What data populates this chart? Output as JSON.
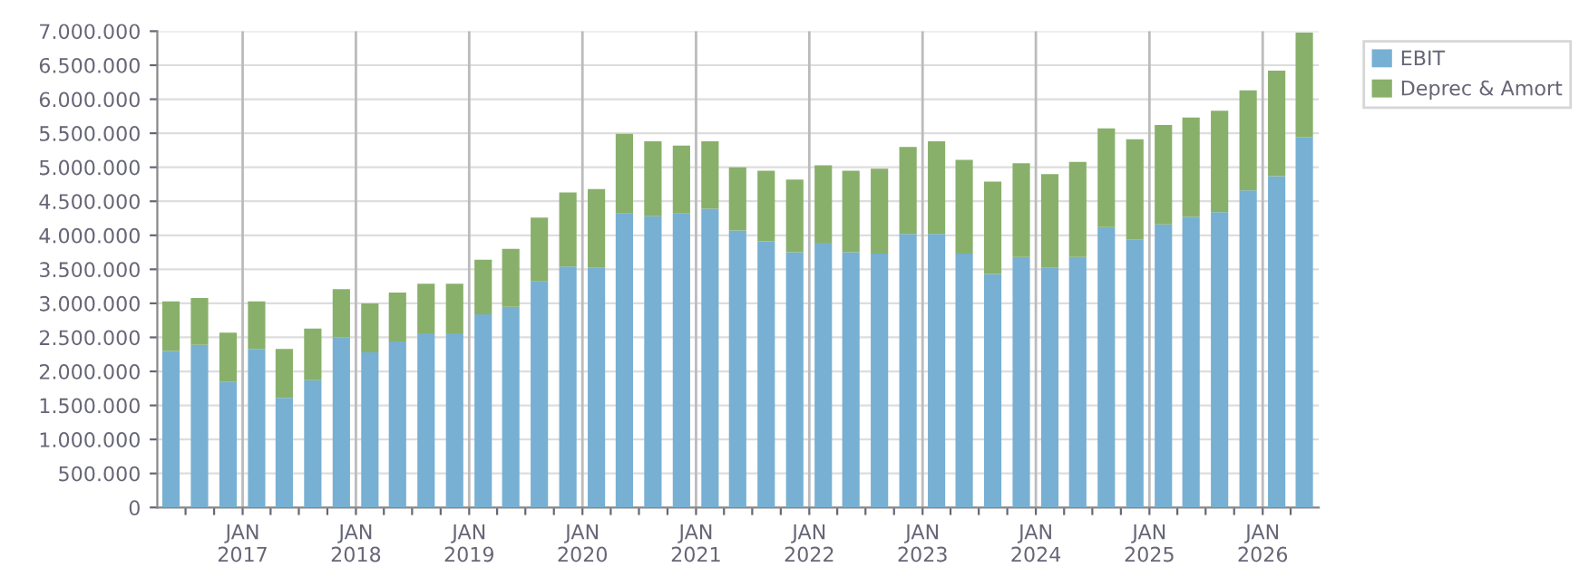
{
  "chart_data": {
    "type": "bar",
    "stacked": true,
    "x": [
      "2016-05-15",
      "2016-08-15",
      "2016-11-15",
      "2017-02-15",
      "2017-05-15",
      "2017-08-15",
      "2017-11-15",
      "2018-02-15",
      "2018-05-15",
      "2018-08-15",
      "2018-11-15",
      "2019-02-15",
      "2019-05-15",
      "2019-08-15",
      "2019-11-15",
      "2020-02-15",
      "2020-05-15",
      "2020-08-15",
      "2020-11-15",
      "2021-02-15",
      "2021-05-15",
      "2021-08-15",
      "2021-11-15",
      "2022-02-15",
      "2022-05-15",
      "2022-08-15",
      "2022-11-15",
      "2023-02-15",
      "2023-05-15",
      "2023-08-15",
      "2023-11-15",
      "2024-02-15",
      "2024-05-15",
      "2024-08-15",
      "2024-11-15",
      "2025-02-15",
      "2025-05-15",
      "2025-08-15",
      "2025-11-15",
      "2026-02-15",
      "2026-05-15"
    ],
    "series": [
      {
        "name": "EBIT",
        "color": "#77b0d3",
        "values": [
          2300000,
          2390000,
          1850000,
          2330000,
          1610000,
          1870000,
          2500000,
          2280000,
          2440000,
          2560000,
          2560000,
          2840000,
          2950000,
          3320000,
          3540000,
          3520000,
          4320000,
          4280000,
          4320000,
          4390000,
          4070000,
          3910000,
          3750000,
          3890000,
          3750000,
          3730000,
          4020000,
          4020000,
          3730000,
          3430000,
          3680000,
          3520000,
          3680000,
          4120000,
          3940000,
          4160000,
          4270000,
          4340000,
          4660000,
          4870000,
          5440000
        ]
      },
      {
        "name": "Deprec & Amort",
        "color": "#88b06a",
        "values": [
          730000,
          690000,
          720000,
          700000,
          720000,
          760000,
          710000,
          720000,
          720000,
          730000,
          730000,
          800000,
          850000,
          940000,
          1090000,
          1160000,
          1170000,
          1100000,
          1000000,
          990000,
          930000,
          1040000,
          1070000,
          1140000,
          1200000,
          1250000,
          1280000,
          1360000,
          1380000,
          1360000,
          1380000,
          1380000,
          1400000,
          1450000,
          1470000,
          1460000,
          1460000,
          1490000,
          1470000,
          1550000,
          1540000
        ]
      }
    ],
    "xlim": [
      "2016-04-01",
      "2026-07-01"
    ],
    "xticks": [
      {
        "value": "2016-07-01",
        "label": null
      },
      {
        "value": "2016-10-01",
        "label": null
      },
      {
        "value": "2017-01-01",
        "label": "JAN\n2017"
      },
      {
        "value": "2017-04-01",
        "label": null
      },
      {
        "value": "2017-07-01",
        "label": null
      },
      {
        "value": "2017-10-01",
        "label": null
      },
      {
        "value": "2018-01-01",
        "label": "JAN\n2018"
      },
      {
        "value": "2018-04-01",
        "label": null
      },
      {
        "value": "2018-07-01",
        "label": null
      },
      {
        "value": "2018-10-01",
        "label": null
      },
      {
        "value": "2019-01-01",
        "label": "JAN\n2019"
      },
      {
        "value": "2019-04-01",
        "label": null
      },
      {
        "value": "2019-07-01",
        "label": null
      },
      {
        "value": "2019-10-01",
        "label": null
      },
      {
        "value": "2020-01-01",
        "label": "JAN\n2020"
      },
      {
        "value": "2020-04-01",
        "label": null
      },
      {
        "value": "2020-07-01",
        "label": null
      },
      {
        "value": "2020-10-01",
        "label": null
      },
      {
        "value": "2021-01-01",
        "label": "JAN\n2021"
      },
      {
        "value": "2021-04-01",
        "label": null
      },
      {
        "value": "2021-07-01",
        "label": null
      },
      {
        "value": "2021-10-01",
        "label": null
      },
      {
        "value": "2022-01-01",
        "label": "JAN\n2022"
      },
      {
        "value": "2022-04-01",
        "label": null
      },
      {
        "value": "2022-07-01",
        "label": null
      },
      {
        "value": "2022-10-01",
        "label": null
      },
      {
        "value": "2023-01-01",
        "label": "JAN\n2023"
      },
      {
        "value": "2023-04-01",
        "label": null
      },
      {
        "value": "2023-07-01",
        "label": null
      },
      {
        "value": "2023-10-01",
        "label": null
      },
      {
        "value": "2024-01-01",
        "label": "JAN\n2024"
      },
      {
        "value": "2024-04-01",
        "label": null
      },
      {
        "value": "2024-07-01",
        "label": null
      },
      {
        "value": "2024-10-01",
        "label": null
      },
      {
        "value": "2025-01-01",
        "label": "JAN\n2025"
      },
      {
        "value": "2025-04-01",
        "label": null
      },
      {
        "value": "2025-07-01",
        "label": null
      },
      {
        "value": "2025-10-01",
        "label": null
      },
      {
        "value": "2026-01-01",
        "label": "JAN\n2026"
      },
      {
        "value": "2026-04-01",
        "label": null
      }
    ],
    "ylim": [
      0,
      7000000
    ],
    "yticks": [
      0,
      {
        "value": 500000,
        "label": "500.000"
      },
      {
        "value": 1000000,
        "label": "1.000.000"
      },
      {
        "value": 1500000,
        "label": "1.500.000"
      },
      {
        "value": 2000000,
        "label": "2.000.000"
      },
      {
        "value": 2500000,
        "label": "2.500.000"
      },
      {
        "value": 3000000,
        "label": "3.000.000"
      },
      {
        "value": 3500000,
        "label": "3.500.000"
      },
      {
        "value": 4000000,
        "label": "4.000.000"
      },
      {
        "value": 4500000,
        "label": "4.500.000"
      },
      {
        "value": 5000000,
        "label": "5.000.000"
      },
      {
        "value": 5500000,
        "label": "5.500.000"
      },
      {
        "value": 6000000,
        "label": "6.000.000"
      },
      {
        "value": 6500000,
        "label": "6.500.000"
      },
      {
        "value": 7000000,
        "label": "7.000.000"
      }
    ],
    "grid": true,
    "legend": "right"
  }
}
